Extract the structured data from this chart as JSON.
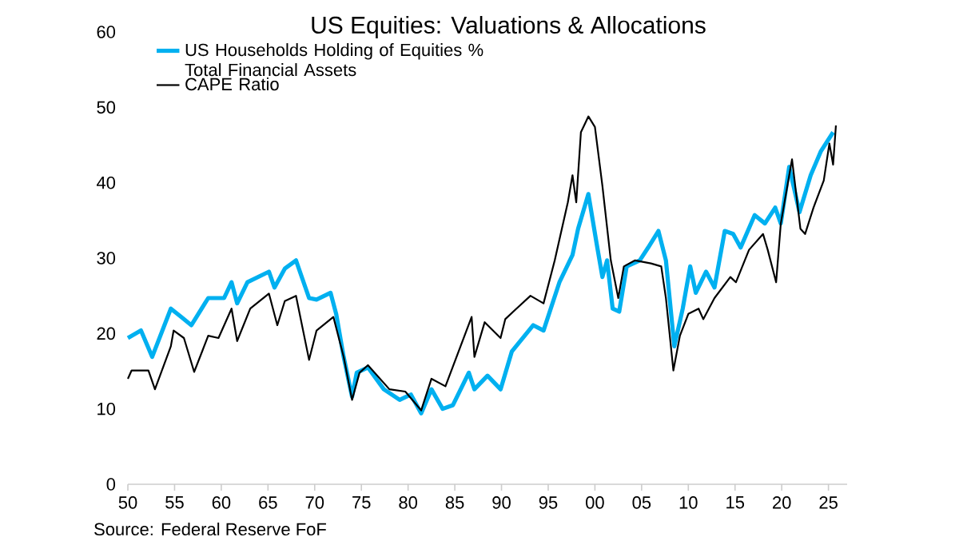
{
  "chart_data": {
    "type": "line",
    "title": "US Equities: Valuations & Allocations",
    "annotations": [
      "Source: Federal Reserve FoF"
    ],
    "legend": "top left",
    "xlim": [
      1950,
      2027
    ],
    "ylim": [
      0,
      60
    ],
    "xticks": [
      {
        "value": 1950,
        "label": "50"
      },
      {
        "value": 1955,
        "label": "55"
      },
      {
        "value": 1960,
        "label": "60"
      },
      {
        "value": 1965,
        "label": "65"
      },
      {
        "value": 1970,
        "label": "70"
      },
      {
        "value": 1975,
        "label": "75"
      },
      {
        "value": 1980,
        "label": "80"
      },
      {
        "value": 1985,
        "label": "85"
      },
      {
        "value": 1990,
        "label": "90"
      },
      {
        "value": 1995,
        "label": "95"
      },
      {
        "value": 2000,
        "label": "00"
      },
      {
        "value": 2005,
        "label": "05"
      },
      {
        "value": 2010,
        "label": "10"
      },
      {
        "value": 2015,
        "label": "15"
      },
      {
        "value": 2020,
        "label": "20"
      },
      {
        "value": 2025,
        "label": "25"
      }
    ],
    "yticks": [
      0,
      10,
      20,
      30,
      40,
      50,
      60
    ],
    "series": [
      {
        "name": "US Households Holding of Equities % Total Financial Assets",
        "color": "#00b0f0",
        "x": [
          1950,
          1951.4,
          1952.6,
          1954.6,
          1955.7,
          1956.8,
          1958.6,
          1960.3,
          1961.1,
          1961.7,
          1962.8,
          1965.1,
          1965.7,
          1966.8,
          1968,
          1969.4,
          1970.2,
          1971.7,
          1972.3,
          1973.1,
          1974,
          1974.5,
          1975.7,
          1977.4,
          1979.1,
          1980.3,
          1981.4,
          1982.5,
          1983.7,
          1984.8,
          1986.5,
          1987.1,
          1988.5,
          1989.9,
          1991.1,
          1993.4,
          1994.5,
          1996.2,
          1997.6,
          1998.2,
          1999.3,
          2000.2,
          2000.8,
          2001.3,
          2001.9,
          2002.6,
          2003.4,
          2004.8,
          2005.7,
          2006.8,
          2007.6,
          2008.5,
          2009.4,
          2010.2,
          2010.8,
          2011.9,
          2012.8,
          2013.9,
          2014.8,
          2015.6,
          2017.1,
          2018.2,
          2019.3,
          2019.9,
          2020.8,
          2021.9,
          2023.1,
          2024.2,
          2025.5
        ],
        "values": [
          19.4,
          20.4,
          16.9,
          23.3,
          22.2,
          21.1,
          24.7,
          24.7,
          26.8,
          24.0,
          26.8,
          28.2,
          26.1,
          28.6,
          29.7,
          24.7,
          24.5,
          25.4,
          22.6,
          16.9,
          11.6,
          14.8,
          15.5,
          12.6,
          11.2,
          11.9,
          9.4,
          12.6,
          10.0,
          10.5,
          14.8,
          12.6,
          14.4,
          12.6,
          17.6,
          21.1,
          20.4,
          26.8,
          30.4,
          33.9,
          38.5,
          31.8,
          27.5,
          29.7,
          23.3,
          22.9,
          28.9,
          29.7,
          31.4,
          33.6,
          29.7,
          18.3,
          23.3,
          28.9,
          25.4,
          28.2,
          26.1,
          33.6,
          33.2,
          31.4,
          35.7,
          34.6,
          36.7,
          34.6,
          42.1,
          36.1,
          41.0,
          44.2,
          46.7
        ]
      },
      {
        "name": "CAPE Ratio",
        "color": "#000000",
        "x": [
          1950,
          1950.4,
          1952.2,
          1952.9,
          1954.6,
          1954.9,
          1956,
          1957.1,
          1958.6,
          1959.7,
          1961.1,
          1961.7,
          1963.1,
          1965.1,
          1966,
          1966.8,
          1968,
          1969.4,
          1970.2,
          1972,
          1973.1,
          1974,
          1974.8,
          1975.7,
          1978,
          1979.7,
          1981.4,
          1982.5,
          1984,
          1985.4,
          1986.8,
          1987.1,
          1988.2,
          1989.9,
          1990.4,
          1991.6,
          1993.1,
          1994.5,
          1995.7,
          1997.1,
          1997.6,
          1998,
          1998.5,
          1999.3,
          2000,
          2000.8,
          2001.7,
          2002.5,
          2003.1,
          2004.3,
          2006,
          2007.1,
          2007.6,
          2008.4,
          2009.1,
          2010,
          2011.1,
          2011.6,
          2012.8,
          2014.5,
          2015.1,
          2016.5,
          2018,
          2018.5,
          2019.4,
          2019.9,
          2021.1,
          2022,
          2022.5,
          2023.4,
          2024.5,
          2025.1,
          2025.5,
          2025.8
        ],
        "values": [
          14.0,
          15.1,
          15.1,
          12.6,
          18.3,
          20.4,
          19.4,
          14.9,
          19.7,
          19.4,
          23.3,
          19.0,
          23.3,
          25.3,
          21.1,
          24.3,
          25.0,
          16.5,
          20.4,
          22.2,
          16.9,
          11.2,
          14.8,
          15.8,
          12.6,
          12.3,
          9.8,
          14.0,
          13.0,
          17.6,
          22.2,
          16.9,
          21.5,
          19.4,
          21.9,
          23.3,
          25.0,
          24.0,
          29.7,
          37.4,
          41.0,
          37.4,
          46.7,
          48.8,
          47.4,
          39.6,
          29.7,
          24.7,
          28.9,
          29.7,
          29.3,
          28.9,
          24.7,
          15.1,
          19.7,
          22.6,
          23.3,
          21.9,
          24.7,
          27.5,
          26.8,
          31.1,
          33.2,
          31.1,
          26.8,
          34.6,
          43.1,
          33.9,
          33.2,
          36.7,
          40.3,
          45.2,
          42.4,
          47.6
        ]
      }
    ]
  }
}
